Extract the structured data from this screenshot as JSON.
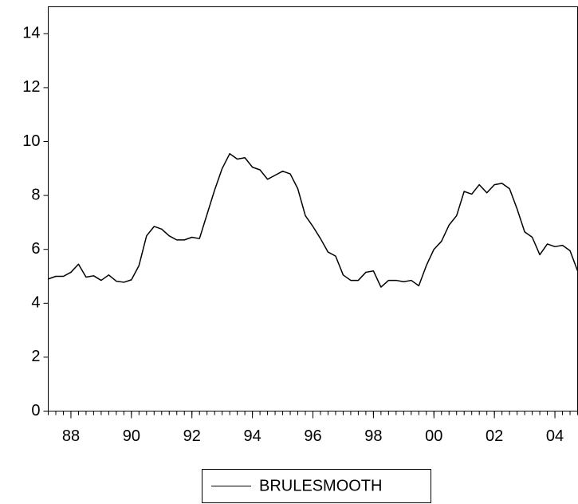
{
  "chart_data": {
    "type": "line",
    "x": [
      1987.25,
      1987.5,
      1987.75,
      1988,
      1988.25,
      1988.5,
      1988.75,
      1989,
      1989.25,
      1989.5,
      1989.75,
      1990,
      1990.25,
      1990.5,
      1990.75,
      1991,
      1991.25,
      1991.5,
      1991.75,
      1992,
      1992.25,
      1992.5,
      1992.75,
      1993,
      1993.25,
      1993.5,
      1993.75,
      1994,
      1994.25,
      1994.5,
      1994.75,
      1995,
      1995.25,
      1995.5,
      1995.75,
      1996,
      1996.25,
      1996.5,
      1996.75,
      1997,
      1997.25,
      1997.5,
      1997.75,
      1998,
      1998.25,
      1998.5,
      1998.75,
      1999,
      1999.25,
      1999.5,
      1999.75,
      2000,
      2000.25,
      2000.5,
      2000.75,
      2001,
      2001.25,
      2001.5,
      2001.75,
      2002,
      2002.25,
      2002.5,
      2002.75,
      2003,
      2003.25,
      2003.5,
      2003.75,
      2004,
      2004.25,
      2004.5,
      2004.75
    ],
    "series": [
      {
        "name": "BRULESMOOTH",
        "color": "#000000",
        "values": [
          4.9,
          5.0,
          5.0,
          5.15,
          5.45,
          4.97,
          5.02,
          4.85,
          5.05,
          4.82,
          4.78,
          4.87,
          5.4,
          6.5,
          6.85,
          6.75,
          6.5,
          6.35,
          6.35,
          6.45,
          6.4,
          7.3,
          8.2,
          9.0,
          9.55,
          9.35,
          9.4,
          9.05,
          8.95,
          8.6,
          8.75,
          8.9,
          8.8,
          8.25,
          7.25,
          6.85,
          6.4,
          5.9,
          5.75,
          5.05,
          4.85,
          4.85,
          5.15,
          5.2,
          4.6,
          4.85,
          4.85,
          4.8,
          4.85,
          4.65,
          5.4,
          6.0,
          6.3,
          6.9,
          7.25,
          8.15,
          8.05,
          8.4,
          8.1,
          8.4,
          8.45,
          8.25,
          7.5,
          6.65,
          6.45,
          5.8,
          6.2,
          6.1,
          6.15,
          5.95,
          5.2
        ]
      }
    ],
    "xlim": [
      1987.25,
      2004.75
    ],
    "xticks": [
      {
        "value": 1988,
        "label": "88"
      },
      {
        "value": 1990,
        "label": "90"
      },
      {
        "value": 1992,
        "label": "92"
      },
      {
        "value": 1994,
        "label": "94"
      },
      {
        "value": 1996,
        "label": "96"
      },
      {
        "value": 1998,
        "label": "98"
      },
      {
        "value": 2000,
        "label": "00"
      },
      {
        "value": 2002,
        "label": "02"
      },
      {
        "value": 2004,
        "label": "04"
      }
    ],
    "ylim": [
      0,
      15
    ],
    "yticks": [
      0,
      2,
      4,
      6,
      8,
      10,
      12,
      14
    ]
  }
}
